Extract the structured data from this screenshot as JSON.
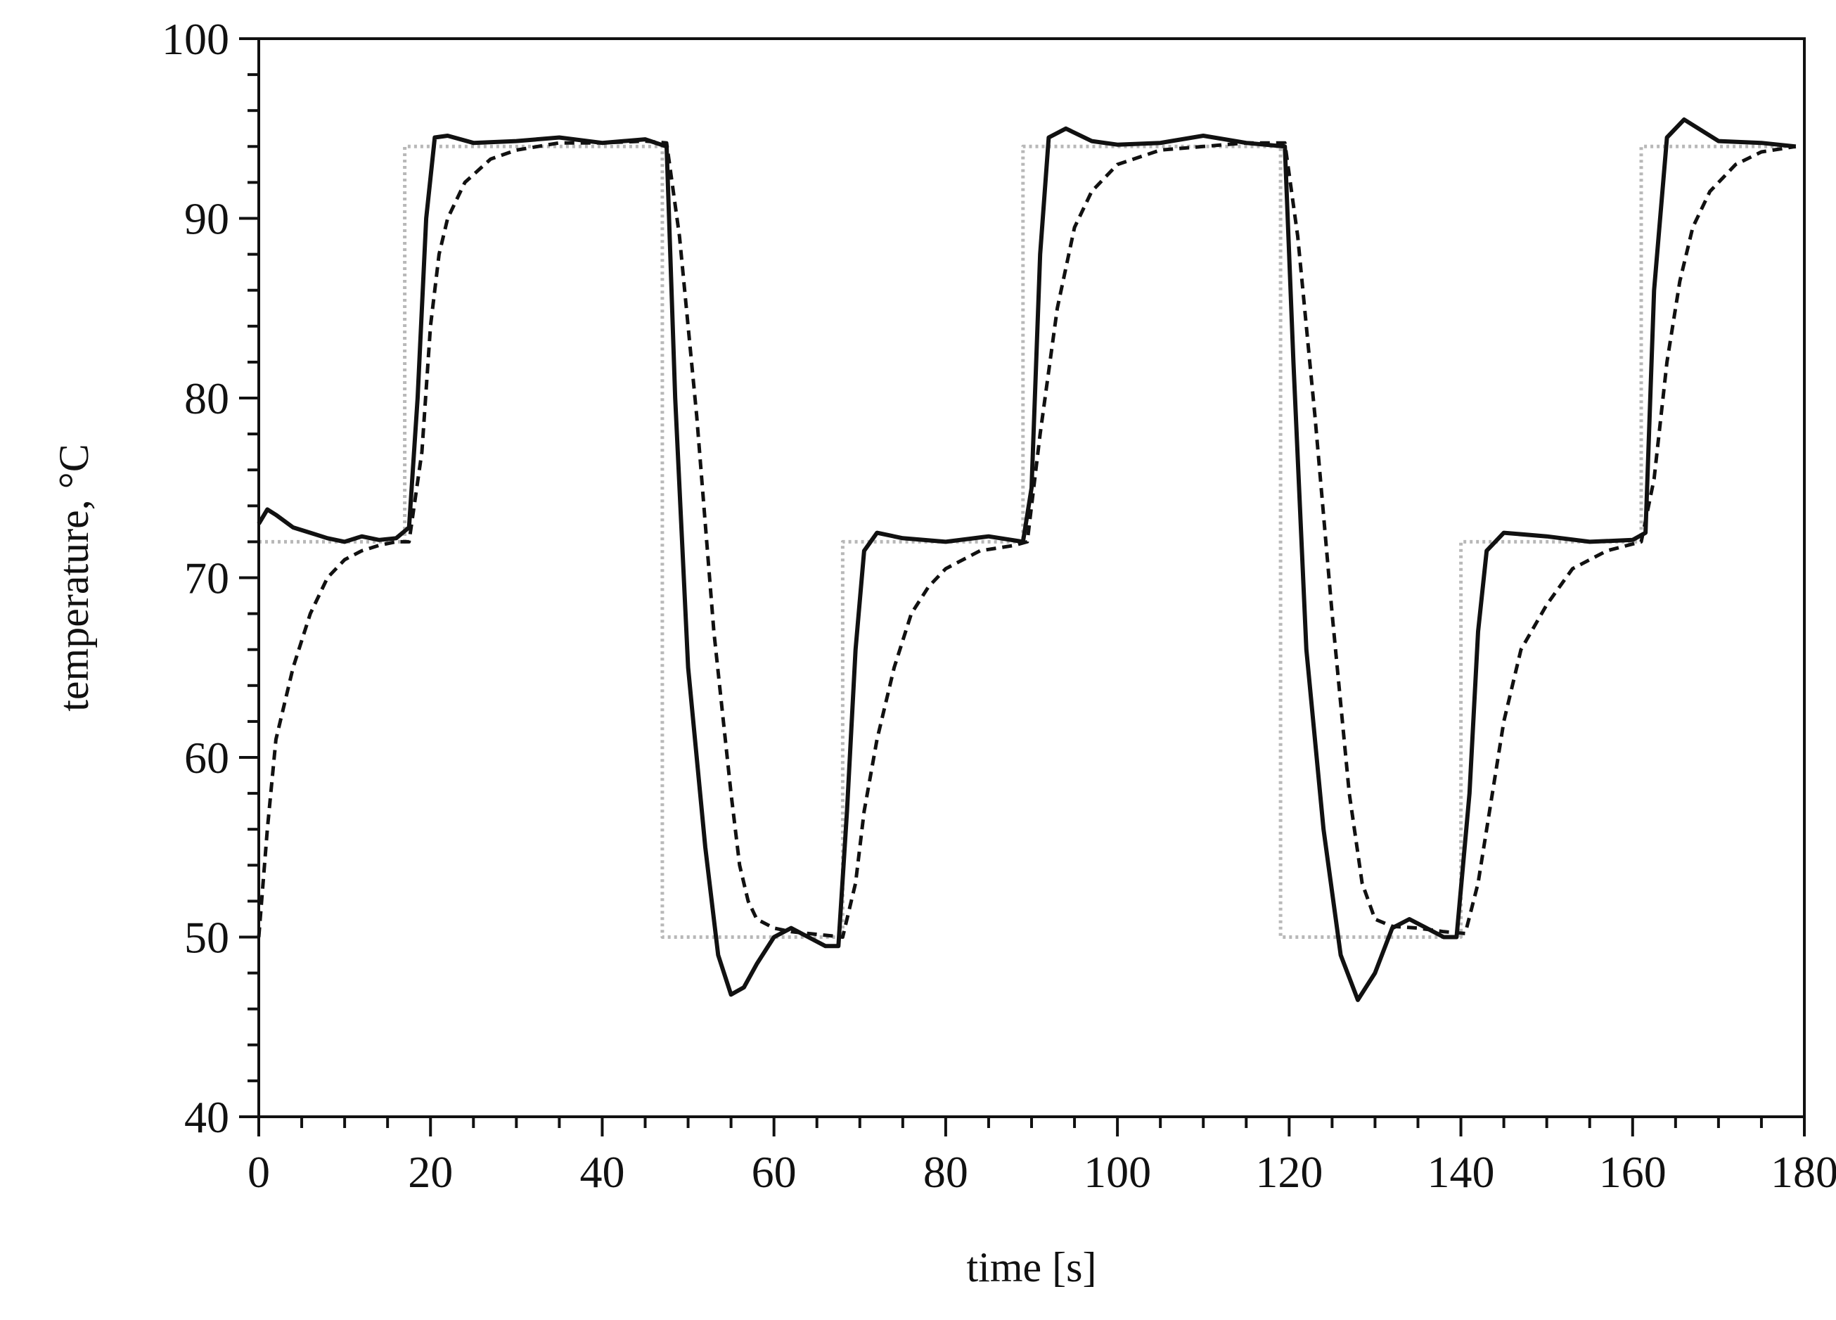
{
  "chart_data": {
    "type": "line",
    "title": "",
    "xlabel": "time [s]",
    "ylabel": "temperature, °C",
    "xlim": [
      0,
      180
    ],
    "ylim": [
      40,
      100
    ],
    "xticks": [
      0,
      20,
      40,
      60,
      80,
      100,
      120,
      140,
      160,
      180
    ],
    "yticks": [
      40,
      50,
      60,
      70,
      80,
      90,
      100
    ],
    "grid": false,
    "legend": "none",
    "series": [
      {
        "style": "dotted-gray",
        "color": "#b8b8b8",
        "x": [
          0,
          17,
          17,
          47,
          47,
          68,
          68,
          89,
          89,
          119,
          119,
          140,
          140,
          161,
          161,
          179
        ],
        "y": [
          72,
          72,
          94,
          94,
          50,
          50,
          72,
          72,
          94,
          94,
          50,
          50,
          72,
          72,
          94,
          94
        ]
      },
      {
        "style": "solid-black",
        "color": "#111111",
        "x": [
          0,
          1,
          2,
          4,
          6,
          8,
          10,
          12,
          14,
          16,
          17.5,
          18.5,
          19.5,
          20.5,
          22,
          25,
          30,
          35,
          40,
          45,
          47.5,
          48.5,
          50,
          52,
          53.5,
          55,
          56.5,
          58,
          60,
          62,
          64,
          66,
          67.5,
          68.5,
          69.5,
          70.5,
          72,
          75,
          80,
          85,
          89,
          90,
          91,
          92,
          94,
          97,
          100,
          105,
          110,
          115,
          119.5,
          120.5,
          122,
          124,
          126,
          128,
          130,
          132,
          134,
          136,
          138,
          139.5,
          141,
          142,
          143,
          145,
          150,
          155,
          160,
          161.5,
          162.5,
          164,
          166,
          170,
          175,
          179
        ],
        "y": [
          73,
          73.8,
          73.5,
          72.8,
          72.5,
          72.2,
          72,
          72.3,
          72.1,
          72.2,
          72.8,
          80,
          90,
          94.5,
          94.6,
          94.2,
          94.3,
          94.5,
          94.2,
          94.4,
          94,
          80,
          65,
          55,
          49,
          46.8,
          47.2,
          48.5,
          50,
          50.5,
          50,
          49.5,
          49.5,
          57,
          66,
          71.5,
          72.5,
          72.2,
          72,
          72.3,
          72,
          75,
          88,
          94.5,
          95,
          94.3,
          94.1,
          94.2,
          94.6,
          94.2,
          94,
          82,
          66,
          56,
          49,
          46.5,
          48,
          50.5,
          51,
          50.5,
          50,
          50,
          58,
          67,
          71.5,
          72.5,
          72.3,
          72,
          72.1,
          72.5,
          86,
          94.5,
          95.5,
          94.3,
          94.2,
          94
        ]
      },
      {
        "style": "dashed-black",
        "color": "#111111",
        "x": [
          0,
          1,
          2,
          4,
          6,
          8,
          10,
          12,
          14,
          16,
          17.5,
          19,
          20,
          21,
          22,
          24,
          27,
          30,
          35,
          40,
          45,
          47.5,
          49,
          51,
          53,
          55,
          56,
          57,
          58,
          60,
          62,
          64,
          66,
          68,
          69.5,
          70.5,
          72,
          74,
          76,
          78,
          80,
          84,
          88,
          89.5,
          91,
          93,
          95,
          97,
          100,
          105,
          110,
          115,
          119.5,
          121,
          123,
          125,
          127,
          128.5,
          130,
          132,
          135,
          138,
          140.5,
          142,
          143.5,
          145,
          147,
          150,
          153,
          157,
          161,
          162.5,
          164,
          165.5,
          167,
          169,
          172,
          175,
          179
        ],
        "y": [
          50,
          56,
          61,
          65,
          68,
          70,
          71,
          71.5,
          71.8,
          72,
          72,
          77,
          84,
          88,
          90,
          92,
          93.3,
          93.8,
          94.2,
          94.2,
          94.3,
          94.2,
          89,
          79,
          67,
          58,
          54,
          52,
          51,
          50.5,
          50.3,
          50.2,
          50.1,
          50,
          53,
          57,
          61,
          65,
          68,
          69.5,
          70.5,
          71.5,
          71.8,
          72,
          78,
          85,
          89.5,
          91.5,
          93,
          93.8,
          94,
          94.2,
          94.2,
          89,
          79,
          68,
          58,
          53,
          51,
          50.6,
          50.5,
          50.3,
          50.2,
          53,
          57.5,
          62,
          66,
          68.5,
          70.5,
          71.5,
          72,
          75.5,
          82,
          86.5,
          89.5,
          91.5,
          93,
          93.7,
          94
        ]
      }
    ]
  }
}
